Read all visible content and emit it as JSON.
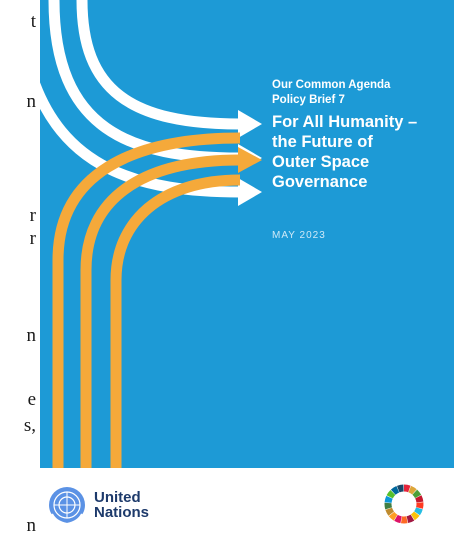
{
  "left_fragments": [
    "t",
    "n",
    "r",
    "r",
    "n",
    "e",
    "s,",
    "n"
  ],
  "cover": {
    "series_line1": "Our Common Agenda",
    "series_line2": "Policy Brief 7",
    "title_line1": "For All Humanity –",
    "title_line2": "the Future of",
    "title_line3": "Outer Space",
    "title_line4": "Governance",
    "date": "MAY 2023",
    "colors": {
      "background": "#1d9ad6",
      "arrow_white": "#ffffff",
      "arrow_orange": "#f5a93a"
    }
  },
  "footer": {
    "un_line1": "United",
    "un_line2": "Nations",
    "un_emblem_icon": "un-emblem-icon",
    "sdg_icon": "sdg-wheel-icon"
  }
}
